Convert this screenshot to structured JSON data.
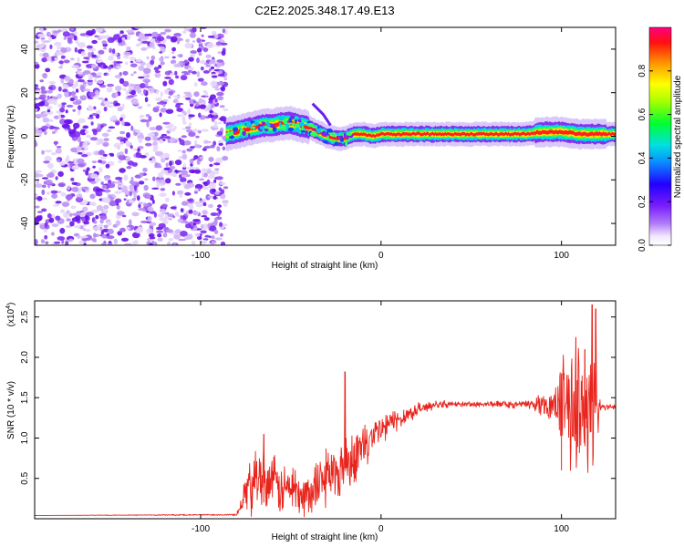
{
  "chart_data": [
    {
      "type": "heatmap",
      "title": "C2E2.2025.348.17.49.E13",
      "xlabel": "Height of straight line (km)",
      "ylabel": "Frequency (Hz)",
      "xlim": [
        -192,
        130
      ],
      "ylim": [
        -50,
        50
      ],
      "xticks": [
        -100,
        0,
        100
      ],
      "yticks": [
        -40,
        -20,
        0,
        20,
        40
      ],
      "xtick_labels": [
        "-100",
        "0",
        "100"
      ],
      "ytick_labels": [
        "-40",
        "-20",
        "0",
        "20",
        "40"
      ],
      "colorbar": {
        "label": "Normalized spectral amplitude",
        "range": [
          0,
          1
        ],
        "ticks": [
          0.0,
          0.2,
          0.4,
          0.6,
          0.8
        ],
        "tick_labels": [
          "0.0",
          "0.2",
          "0.4",
          "0.6",
          "0.8"
        ],
        "colormap": "rainbow"
      },
      "noise_region_x": [
        -192,
        -86
      ],
      "signal_ridge": {
        "x": [
          -86,
          -80,
          -75,
          -70,
          -65,
          -60,
          -55,
          -50,
          -45,
          -40,
          -35,
          -30,
          -25,
          -20,
          -15,
          -10,
          -5,
          0,
          10,
          20,
          40,
          60,
          80,
          90,
          100,
          110,
          120,
          130
        ],
        "y": [
          1,
          2,
          3,
          4,
          5,
          5,
          6,
          6,
          5,
          4,
          2,
          0,
          -1,
          -1,
          1,
          1,
          0,
          1,
          1,
          1,
          1,
          1,
          1,
          2,
          2,
          1,
          1,
          1
        ]
      }
    },
    {
      "type": "line",
      "title": "",
      "xlabel": "Height of straight line (km)",
      "ylabel": "SNR (10 * v/v)",
      "scale_label": "(x10",
      "scale_exponent": "4",
      "xlim": [
        -192,
        130
      ],
      "ylim": [
        0,
        2.7
      ],
      "xticks": [
        -100,
        0,
        100
      ],
      "yticks": [
        0.5,
        1.0,
        1.5,
        2.0,
        2.5
      ],
      "xtick_labels": [
        "-100",
        "0",
        "100"
      ],
      "ytick_labels": [
        "0.5",
        "1.0",
        "1.5",
        "2.0",
        "2.5"
      ],
      "series": [
        {
          "color": "#e8241c",
          "envelope": {
            "x": [
              -192,
              -80,
              -75,
              -70,
              -65,
              -60,
              -55,
              -50,
              -45,
              -40,
              -35,
              -30,
              -25,
              -20,
              -15,
              -10,
              -5,
              0,
              10,
              20,
              30,
              40,
              60,
              80,
              95,
              100,
              105,
              110,
              115,
              118,
              120,
              125,
              130
            ],
            "y": [
              0.04,
              0.05,
              0.35,
              0.55,
              0.5,
              0.45,
              0.35,
              0.4,
              0.35,
              0.3,
              0.45,
              0.6,
              0.55,
              0.7,
              0.8,
              0.9,
              1.0,
              1.1,
              1.25,
              1.35,
              1.42,
              1.42,
              1.42,
              1.42,
              1.42,
              1.5,
              1.4,
              1.4,
              1.3,
              1.5,
              1.4,
              1.38,
              1.38
            ]
          },
          "noise_amp": {
            "x": [
              -192,
              -80,
              -72,
              -60,
              -45,
              -30,
              -20,
              -10,
              0,
              15,
              30,
              40,
              80,
              95,
              100,
              110,
              115,
              120,
              122,
              130
            ],
            "y": [
              0.0,
              0.01,
              0.45,
              0.4,
              0.35,
              0.4,
              0.45,
              0.35,
              0.25,
              0.12,
              0.06,
              0.04,
              0.05,
              0.2,
              0.6,
              0.9,
              1.1,
              0.6,
              0.05,
              0.04
            ]
          },
          "peaks": [
            {
              "x": -65,
              "y": 1.05
            },
            {
              "x": -20,
              "y": 1.82
            },
            {
              "x": 100,
              "y": 1.8
            },
            {
              "x": 108,
              "y": 2.25
            },
            {
              "x": 113,
              "y": 2.1
            },
            {
              "x": 117,
              "y": 2.65
            },
            {
              "x": 119,
              "y": 2.6
            }
          ]
        }
      ]
    }
  ]
}
